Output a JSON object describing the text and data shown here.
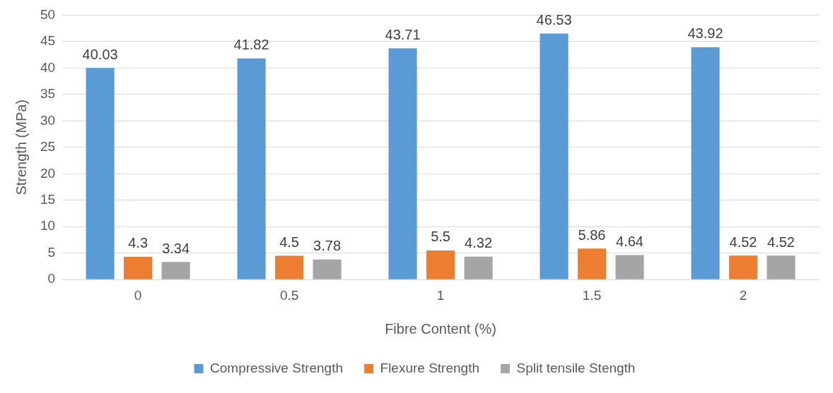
{
  "chart_data": {
    "type": "bar",
    "xlabel": "Fibre Content (%)",
    "ylabel": "Strength (MPa)",
    "categories": [
      "0",
      "0.5",
      "1",
      "1.5",
      "2"
    ],
    "series": [
      {
        "name": "Compressive Strength",
        "color": "#5b9bd5",
        "values": [
          40.03,
          41.82,
          43.71,
          46.53,
          43.92
        ]
      },
      {
        "name": "Flexure Strength",
        "color": "#ed7d31",
        "values": [
          4.3,
          4.5,
          5.5,
          5.86,
          4.52
        ]
      },
      {
        "name": "Split tensile Stength",
        "color": "#a5a5a5",
        "values": [
          3.34,
          3.78,
          4.32,
          4.64,
          4.52
        ]
      }
    ],
    "ylim": [
      0,
      50
    ],
    "yticks": [
      0,
      5,
      10,
      15,
      20,
      25,
      30,
      35,
      40,
      45,
      50
    ],
    "grid": "y",
    "legend": "bottom",
    "data_labels": true
  }
}
